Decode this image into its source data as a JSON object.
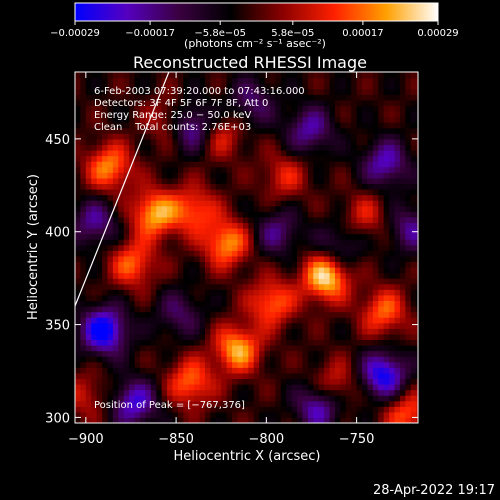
{
  "chart_data": {
    "type": "heatmap",
    "title": "Reconstructed RHESSI Image",
    "xlabel": "Heliocentric X (arcsec)",
    "ylabel": "Heliocentric Y (arcsec)",
    "xlim": [
      -906,
      -716
    ],
    "ylim": [
      297,
      486
    ],
    "x_ticks": [
      -900,
      -850,
      -800,
      -750
    ],
    "x_tick_labels": [
      "−900",
      "−850",
      "−800",
      "−750"
    ],
    "y_ticks": [
      300,
      350,
      400,
      450
    ],
    "y_tick_labels": [
      "300",
      "350",
      "400",
      "450"
    ],
    "colorbar": {
      "min": -0.00029,
      "max": 0.00029,
      "ticks": [
        -0.00029,
        -0.00017,
        -5.8e-05,
        5.8e-05,
        0.00017,
        0.00029
      ],
      "tick_labels": [
        "−0.00029",
        "−0.00017",
        "−5.8e−05",
        "5.8e−05",
        "0.00017",
        "0.00029"
      ],
      "unit_label": "(photons cm⁻² s⁻¹ asec⁻²)",
      "colors": [
        "#0000ff",
        "#5500c0",
        "#3a0040",
        "#000000",
        "#8a0000",
        "#ff2000",
        "#ffa000",
        "#ffffff"
      ]
    },
    "annotations": [
      "6-Feb-2003 07:39:20.000 to 07:43:16.000",
      "Detectors: 3F 4F 5F 6F 7F 8F, Att 0",
      "Energy Range: 25.0 − 50.0 keV",
      "Clean    Total counts: 2.76E+03"
    ],
    "peak_label": "Position of Peak = [−767,376]",
    "limb_line": {
      "x": [
        -906,
        -854
      ],
      "y": [
        360,
        486
      ]
    },
    "grid": false,
    "hot_spots": [
      {
        "x": -887,
        "y": 435,
        "value": 0.00021
      },
      {
        "x": -862,
        "y": 410,
        "value": 0.00024
      },
      {
        "x": -874,
        "y": 383,
        "value": 0.00018
      },
      {
        "x": -840,
        "y": 412,
        "value": 0.00017
      },
      {
        "x": -822,
        "y": 394,
        "value": 0.00022
      },
      {
        "x": -767,
        "y": 376,
        "value": 0.00029
      },
      {
        "x": -797,
        "y": 362,
        "value": 0.00019
      },
      {
        "x": -816,
        "y": 337,
        "value": 0.00024
      },
      {
        "x": -842,
        "y": 319,
        "value": 0.00019
      },
      {
        "x": -735,
        "y": 357,
        "value": 0.00018
      },
      {
        "x": -722,
        "y": 302,
        "value": 0.00017
      },
      {
        "x": -762,
        "y": 318,
        "value": 0.00013
      },
      {
        "x": -853,
        "y": 460,
        "value": 0.00013
      },
      {
        "x": -825,
        "y": 452,
        "value": 0.00012
      },
      {
        "x": -745,
        "y": 409,
        "value": 0.00011
      },
      {
        "x": -900,
        "y": 312,
        "value": 0.0001
      },
      {
        "x": -790,
        "y": 430,
        "value": 0.00012
      }
    ],
    "cold_spots": [
      {
        "x": -842,
        "y": 457,
        "value": -0.00022
      },
      {
        "x": -890,
        "y": 347,
        "value": -0.00029
      },
      {
        "x": -873,
        "y": 308,
        "value": -0.00021
      },
      {
        "x": -735,
        "y": 323,
        "value": -0.00026
      },
      {
        "x": -771,
        "y": 306,
        "value": -0.0002
      },
      {
        "x": -734,
        "y": 437,
        "value": -0.00019
      },
      {
        "x": -776,
        "y": 455,
        "value": -0.00017
      },
      {
        "x": -794,
        "y": 400,
        "value": -0.00014
      },
      {
        "x": -895,
        "y": 405,
        "value": -0.00016
      },
      {
        "x": -760,
        "y": 392,
        "value": -0.00012
      },
      {
        "x": -808,
        "y": 470,
        "value": -0.00013
      },
      {
        "x": -720,
        "y": 402,
        "value": -0.00015
      },
      {
        "x": -848,
        "y": 356,
        "value": -0.00012
      }
    ]
  },
  "footer": {
    "timestamp": "28-Apr-2022 19:17"
  }
}
